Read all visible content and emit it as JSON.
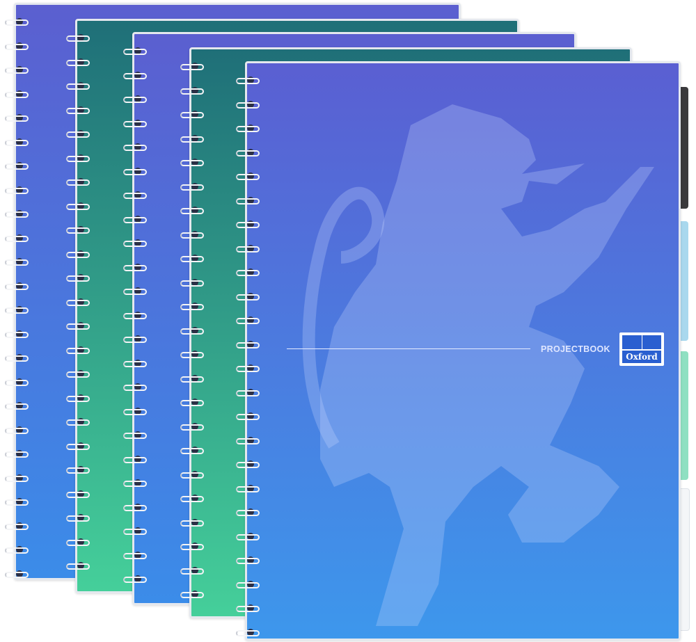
{
  "product": {
    "label": "PROJECTBOOK",
    "logo_text": "Oxford"
  },
  "notebooks": [
    {
      "cover": "blue",
      "colors": [
        "#5b5fd0",
        "#3b8ce9"
      ]
    },
    {
      "cover": "green",
      "colors": [
        "#1f6f78",
        "#45cf9a"
      ]
    },
    {
      "cover": "blue",
      "colors": [
        "#5b5fd0",
        "#3b8ce9"
      ]
    },
    {
      "cover": "green",
      "colors": [
        "#1f6f78",
        "#45cf9a"
      ]
    },
    {
      "cover": "blue",
      "colors": [
        "#5a5fd2",
        "#3d97ec"
      ]
    }
  ],
  "tabs": [
    "#3a3a3c",
    "#a9d8ee",
    "#8fe0c2",
    "#f4f6f8"
  ]
}
